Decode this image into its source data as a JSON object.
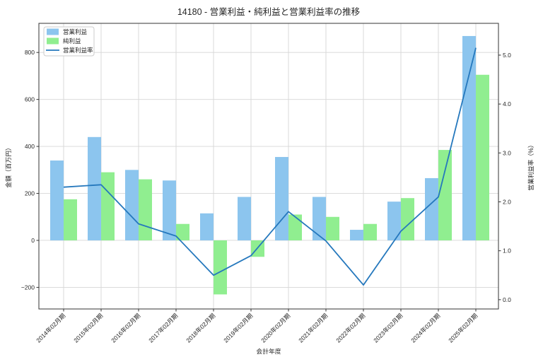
{
  "title": "14180 - 営業利益・純利益と営業利益率の推移",
  "chart_data": {
    "type": "bar+line",
    "categories": [
      "2014年02月期",
      "2015年02月期",
      "2016年02月期",
      "2017年02月期",
      "2018年02月期",
      "2019年02月期",
      "2020年02月期",
      "2021年02月期",
      "2022年02月期",
      "2023年02月期",
      "2024年02月期",
      "2025年02月期"
    ],
    "series": [
      {
        "id": "operating-profit",
        "name": "営業利益",
        "type": "bar",
        "axis": "left",
        "color": "#8cc5ee",
        "values": [
          340,
          440,
          300,
          255,
          115,
          185,
          355,
          185,
          45,
          165,
          265,
          870
        ]
      },
      {
        "id": "net-profit",
        "name": "純利益",
        "type": "bar",
        "axis": "left",
        "color": "#90ee90",
        "values": [
          175,
          290,
          260,
          70,
          -230,
          -70,
          110,
          100,
          70,
          180,
          385,
          705
        ]
      },
      {
        "id": "operating-margin",
        "name": "営業利益率",
        "type": "line",
        "axis": "right",
        "color": "#2578bd",
        "values": [
          2.3,
          2.35,
          1.55,
          1.3,
          0.5,
          0.9,
          1.8,
          1.2,
          0.3,
          1.4,
          2.1,
          5.15
        ]
      }
    ],
    "xlabel": "会計年度",
    "ylabel_left": "金額（百万円）",
    "ylabel_right": "営業利益率（%）",
    "left_tick_values": [
      -200,
      0,
      200,
      400,
      600,
      800
    ],
    "left_tick_labels": [
      "−200",
      "0",
      "200",
      "400",
      "600",
      "800"
    ],
    "right_tick_values": [
      0,
      1,
      2,
      3,
      4,
      5
    ],
    "right_tick_labels": [
      "0.0",
      "1.0",
      "2.0",
      "3.0",
      "4.0",
      "5.0"
    ],
    "ylim_left": [
      -292,
      924
    ],
    "ylim_right": [
      -0.19,
      5.65
    ],
    "grid": true,
    "legend_position": "upper left",
    "colors": {
      "background": "#ffffff",
      "grid": "#d6d6d6",
      "spine": "#333333",
      "text": "#262626",
      "legend_border": "#cccccc"
    }
  }
}
